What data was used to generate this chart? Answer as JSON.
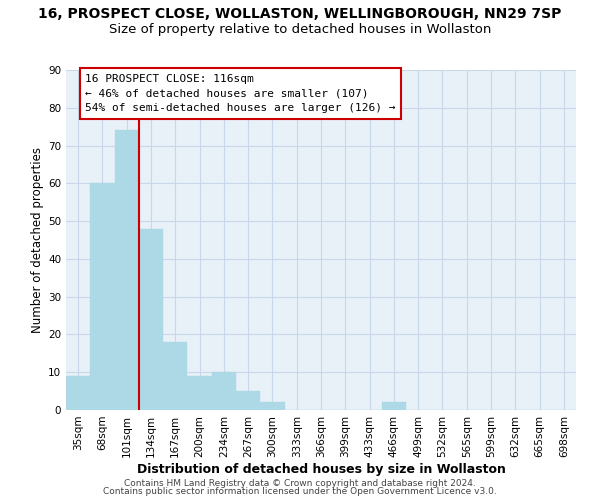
{
  "title": "16, PROSPECT CLOSE, WOLLASTON, WELLINGBOROUGH, NN29 7SP",
  "subtitle": "Size of property relative to detached houses in Wollaston",
  "xlabel": "Distribution of detached houses by size in Wollaston",
  "ylabel": "Number of detached properties",
  "bar_labels": [
    "35sqm",
    "68sqm",
    "101sqm",
    "134sqm",
    "167sqm",
    "200sqm",
    "234sqm",
    "267sqm",
    "300sqm",
    "333sqm",
    "366sqm",
    "399sqm",
    "433sqm",
    "466sqm",
    "499sqm",
    "532sqm",
    "565sqm",
    "599sqm",
    "632sqm",
    "665sqm",
    "698sqm"
  ],
  "bar_values": [
    9,
    60,
    74,
    48,
    18,
    9,
    10,
    5,
    2,
    0,
    0,
    0,
    0,
    2,
    0,
    0,
    0,
    0,
    0,
    0,
    0
  ],
  "bar_color": "#add8e6",
  "vline_bar_index": 2,
  "vline_color": "#cc0000",
  "ylim": [
    0,
    90
  ],
  "yticks": [
    0,
    10,
    20,
    30,
    40,
    50,
    60,
    70,
    80,
    90
  ],
  "annotation_title": "16 PROSPECT CLOSE: 116sqm",
  "annotation_line1": "← 46% of detached houses are smaller (107)",
  "annotation_line2": "54% of semi-detached houses are larger (126) →",
  "annotation_box_color": "#cc0000",
  "footer_line1": "Contains HM Land Registry data © Crown copyright and database right 2024.",
  "footer_line2": "Contains public sector information licensed under the Open Government Licence v3.0.",
  "title_fontsize": 10,
  "subtitle_fontsize": 9.5,
  "xlabel_fontsize": 9,
  "ylabel_fontsize": 8.5,
  "tick_fontsize": 7.5,
  "annotation_fontsize": 8,
  "footer_fontsize": 6.5,
  "bg_color": "#e8f0f8",
  "grid_color": "#c8d8e8"
}
